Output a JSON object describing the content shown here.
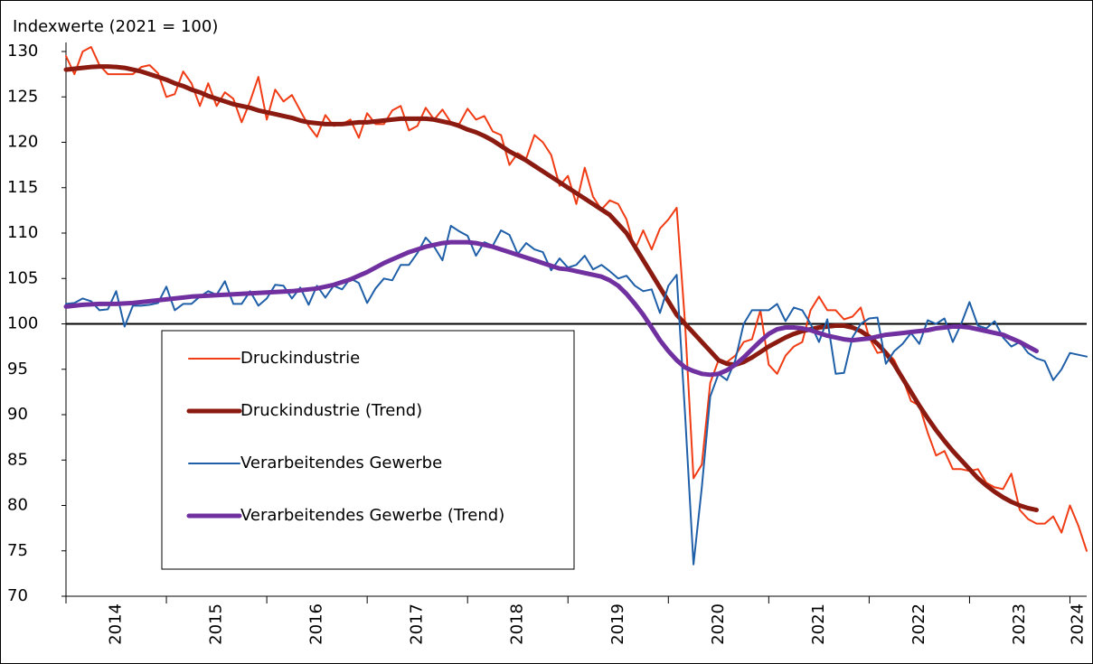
{
  "chart_data": {
    "type": "line",
    "ylabel": "Indexwerte (2021 = 100)",
    "categories": [
      null,
      null,
      null,
      null,
      null,
      null,
      "2014",
      null,
      null,
      null,
      null,
      null,
      null,
      null,
      null,
      null,
      null,
      null,
      "2015",
      null,
      null,
      null,
      null,
      null,
      null,
      null,
      null,
      null,
      null,
      null,
      "2016",
      null,
      null,
      null,
      null,
      null,
      null,
      null,
      null,
      null,
      null,
      null,
      "2017",
      null,
      null,
      null,
      null,
      null,
      null,
      null,
      null,
      null,
      null,
      null,
      "2018",
      null,
      null,
      null,
      null,
      null,
      null,
      null,
      null,
      null,
      null,
      null,
      "2019",
      null,
      null,
      null,
      null,
      null,
      null,
      null,
      null,
      null,
      null,
      null,
      "2020",
      null,
      null,
      null,
      null,
      null,
      null,
      null,
      null,
      null,
      null,
      null,
      "2021",
      null,
      null,
      null,
      null,
      null,
      null,
      null,
      null,
      null,
      null,
      null,
      "2022",
      null,
      null,
      null,
      null,
      null,
      null,
      null,
      null,
      null,
      null,
      null,
      "2023",
      null,
      null,
      null,
      null,
      null,
      null,
      "2024",
      null
    ],
    "series": [
      {
        "name": "Druckindustrie",
        "color": "#f03c14",
        "line_width": 2,
        "values": [
          129.5,
          127.5,
          130,
          130.5,
          128.5,
          127.5,
          127.5,
          127.5,
          127.5,
          128.3,
          128.5,
          127.6,
          125,
          125.3,
          127.8,
          126.5,
          124,
          126.5,
          124,
          125.5,
          124.8,
          122.2,
          124.5,
          127.2,
          122.5,
          125.8,
          124.5,
          125.2,
          123.5,
          121.8,
          120.6,
          123,
          121.8,
          122,
          122.5,
          120.5,
          123.2,
          122,
          122,
          123.5,
          124,
          121.3,
          121.8,
          123.8,
          122.5,
          123.6,
          122.2,
          122,
          123.7,
          122.5,
          122.9,
          121.2,
          120.8,
          117.5,
          118.8,
          118.2,
          120.8,
          120,
          118.6,
          115.2,
          116.3,
          113.2,
          117.2,
          114,
          112.6,
          113.6,
          113.2,
          111.5,
          108.2,
          110.3,
          108.2,
          110.5,
          111.5,
          112.8,
          100,
          83,
          84.5,
          93.5,
          96,
          95.8,
          96.5,
          98,
          98.3,
          101.5,
          95.5,
          94.5,
          96.5,
          97.5,
          98,
          101.5,
          103,
          101.5,
          101.5,
          100.5,
          100.8,
          101.8,
          98.5,
          96.8,
          97,
          96,
          94,
          91.5,
          91,
          88,
          85.5,
          86,
          84,
          84,
          83.8,
          84,
          82.5,
          82,
          81.8,
          83.5,
          79.5,
          78.5,
          78,
          78,
          78.8,
          77,
          80,
          77.8,
          75
        ]
      },
      {
        "name": "Druckindustrie (Trend)",
        "color": "#8b1a10",
        "line_width": 5,
        "values": [
          128,
          128.1,
          128.2,
          128.3,
          128.35,
          128.35,
          128.3,
          128.2,
          128,
          127.8,
          127.5,
          127.2,
          126.9,
          126.5,
          126.2,
          125.8,
          125.5,
          125.1,
          124.8,
          124.5,
          124.2,
          124,
          123.8,
          123.5,
          123.3,
          123.1,
          122.9,
          122.7,
          122.4,
          122.2,
          122.1,
          122,
          122,
          122,
          122.1,
          122.2,
          122.2,
          122.3,
          122.4,
          122.5,
          122.6,
          122.6,
          122.6,
          122.6,
          122.5,
          122.3,
          122.1,
          121.8,
          121.4,
          121.1,
          120.7,
          120.2,
          119.6,
          119,
          118.5,
          118,
          117.4,
          116.8,
          116.2,
          115.6,
          115,
          114.4,
          113.8,
          113.2,
          112.6,
          112,
          111,
          110,
          108.5,
          107,
          105.5,
          104,
          102.5,
          101,
          100,
          99,
          98,
          97,
          96,
          95.6,
          95.5,
          95.8,
          96.3,
          96.9,
          97.5,
          98,
          98.5,
          98.9,
          99.2,
          99.4,
          99.6,
          99.7,
          99.8,
          99.8,
          99.6,
          99.2,
          98.6,
          97.8,
          96.8,
          95.5,
          94,
          92.5,
          91,
          89.6,
          88.3,
          87.1,
          86,
          85,
          84,
          83,
          82.2,
          81.5,
          80.9,
          80.4,
          80,
          79.7,
          79.5,
          null,
          null,
          null,
          null,
          null,
          null
        ]
      },
      {
        "name": "Verarbeitendes Gewerbe",
        "color": "#1f5fa8",
        "line_width": 2,
        "values": [
          102.2,
          102.3,
          102.8,
          102.5,
          101.5,
          101.6,
          103.6,
          99.7,
          102,
          102,
          102.1,
          102.3,
          104.1,
          101.5,
          102.2,
          102.2,
          103,
          103.6,
          103.2,
          104.7,
          102.2,
          102.2,
          103.6,
          102,
          102.8,
          104.3,
          104.2,
          102.8,
          104,
          102.1,
          104.2,
          102.9,
          104.2,
          103.8,
          105,
          104.5,
          102.3,
          103.9,
          105,
          104.8,
          106.5,
          106.5,
          107.8,
          109.5,
          108.5,
          107,
          110.8,
          110.2,
          109.7,
          107.5,
          109,
          108.6,
          110.3,
          109.8,
          107.7,
          108.9,
          108.2,
          107.9,
          105.9,
          107.2,
          106.2,
          106.5,
          107.5,
          106,
          106.5,
          105.8,
          105,
          105.3,
          104.2,
          103.6,
          103.8,
          101.2,
          104.2,
          105.4,
          90,
          73.5,
          82,
          92,
          94.5,
          93.8,
          96,
          100,
          101.5,
          101.5,
          101.5,
          102.2,
          100.3,
          101.8,
          101.5,
          100,
          98,
          100.5,
          94.5,
          94.6,
          98.5,
          100,
          100.6,
          100.7,
          95.6,
          97,
          97.8,
          99,
          97.8,
          100.4,
          100,
          100.6,
          98,
          100,
          102.4,
          99.8,
          99.5,
          100.3,
          98.5,
          97.5,
          98,
          96.8,
          96.2,
          95.9,
          93.8,
          95,
          96.8,
          96.6,
          96.4
        ]
      },
      {
        "name": "Verarbeitendes Gewerbe (Trend)",
        "color": "#7030a0",
        "line_width": 5,
        "values": [
          101.9,
          102,
          102.1,
          102.15,
          102.2,
          102.2,
          102.2,
          102.25,
          102.3,
          102.4,
          102.5,
          102.6,
          102.7,
          102.8,
          102.9,
          103,
          103.05,
          103.1,
          103.15,
          103.2,
          103.25,
          103.3,
          103.35,
          103.4,
          103.45,
          103.5,
          103.55,
          103.6,
          103.7,
          103.8,
          103.9,
          104.1,
          104.3,
          104.6,
          104.9,
          105.3,
          105.7,
          106.2,
          106.7,
          107.1,
          107.5,
          107.9,
          108.2,
          108.5,
          108.7,
          108.9,
          109,
          109,
          109,
          108.9,
          108.7,
          108.5,
          108.2,
          107.9,
          107.6,
          107.3,
          107,
          106.7,
          106.4,
          106.1,
          106,
          105.8,
          105.6,
          105.4,
          105.2,
          104.8,
          104.2,
          103.3,
          102.2,
          101,
          99.6,
          98.2,
          97,
          96,
          95.2,
          94.8,
          94.5,
          94.4,
          94.5,
          94.9,
          95.5,
          96.3,
          97.2,
          98.1,
          98.9,
          99.4,
          99.6,
          99.6,
          99.5,
          99.3,
          99,
          98.7,
          98.5,
          98.3,
          98.2,
          98.3,
          98.4,
          98.6,
          98.8,
          98.9,
          99,
          99.1,
          99.2,
          99.3,
          99.5,
          99.6,
          99.7,
          99.7,
          99.6,
          99.4,
          99.2,
          99,
          98.8,
          98.4,
          98,
          97.5,
          97,
          null,
          null,
          null,
          null,
          null,
          null
        ]
      }
    ],
    "ylim": [
      70,
      130
    ],
    "yticks": [
      70,
      75,
      80,
      85,
      90,
      95,
      100,
      105,
      110,
      115,
      120,
      125,
      130
    ],
    "hline": 100,
    "hline_color": "#000000",
    "legend": "lower left"
  }
}
